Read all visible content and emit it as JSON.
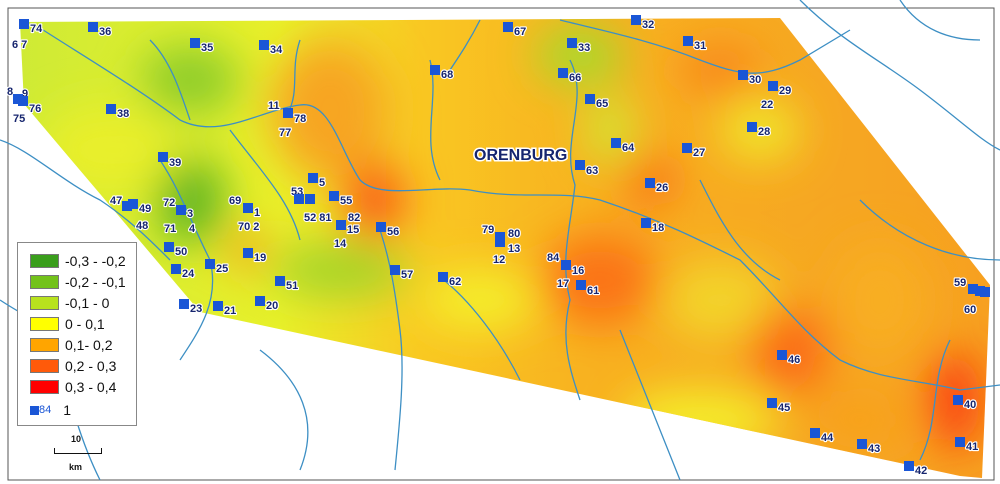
{
  "city_label": "ORENBURG",
  "legend": {
    "classes": [
      {
        "label": "-0,3 - -0,2",
        "color": "#3a9e1c"
      },
      {
        "label": "-0,2 - -0,1",
        "color": "#73c21a"
      },
      {
        "label": "-0,1 - 0",
        "color": "#b8e21e"
      },
      {
        "label": "0 - 0,1",
        "color": "#ffff00"
      },
      {
        "label": "0,1- 0,2",
        "color": "#ffa500"
      },
      {
        "label": "0,2 - 0,3",
        "color": "#ff5a0a"
      },
      {
        "label": "0,3 - 0,4",
        "color": "#ff0000"
      }
    ],
    "marker_sample": "84",
    "marker_meaning": "1",
    "marker_color": "#1a56d6"
  },
  "scale_bar": {
    "value": "10",
    "unit": "km"
  },
  "stations": [
    "74",
    "6 7",
    "36",
    "35",
    "34",
    "67",
    "32",
    "33",
    "31",
    "68",
    "66",
    "30",
    "29",
    "22",
    "65",
    "28",
    "8",
    "9",
    "76",
    "75",
    "38",
    "11",
    "78",
    "77",
    "64",
    "27",
    "63",
    "39",
    "5",
    "26",
    "53",
    "55",
    "47",
    "49",
    "48",
    "72",
    "3",
    "71",
    "4",
    "69",
    "1",
    "70 2",
    "52 81",
    "82",
    "15",
    "14",
    "56",
    "18",
    "79",
    "80",
    "13",
    "12",
    "50",
    "19",
    "84",
    "16",
    "17",
    "61",
    "24",
    "25",
    "57",
    "62",
    "51",
    "59",
    "60",
    "23",
    "21",
    "20",
    "46",
    "40",
    "45",
    "44",
    "43",
    "41",
    "42"
  ]
}
